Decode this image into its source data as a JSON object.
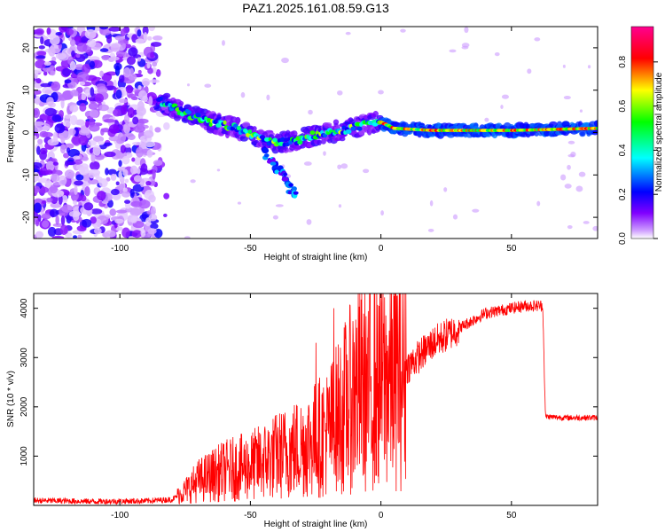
{
  "title": "PAZ1.2025.161.08.59.G13",
  "chart_data": [
    {
      "type": "heatmap",
      "xlabel": "Height of straight line (km)",
      "ylabel": "Frequency (Hz)",
      "xlim": [
        -133,
        83
      ],
      "ylim": [
        -25,
        25
      ],
      "xticks": [
        -100,
        -50,
        0,
        50
      ],
      "yticks": [
        -20,
        -10,
        0,
        10,
        20
      ],
      "colorbar": {
        "label": "Normalized spectral amplitude",
        "range": [
          0,
          0.96
        ],
        "ticks": [
          0.0,
          0.2,
          0.4,
          0.6,
          0.8
        ],
        "colormap": [
          "#ffffff",
          "#8000ff",
          "#0000ff",
          "#00ffff",
          "#00ff00",
          "#ffff00",
          "#ff0000",
          "#ff00a0"
        ]
      },
      "ridge": [
        {
          "x": -85,
          "y": 7.5
        },
        {
          "x": -75,
          "y": 4.5
        },
        {
          "x": -65,
          "y": 2.5
        },
        {
          "x": -55,
          "y": 1.0
        },
        {
          "x": -48,
          "y": -1.0
        },
        {
          "x": -40,
          "y": -2.5
        },
        {
          "x": -33,
          "y": -2.0
        },
        {
          "x": -25,
          "y": -0.5
        },
        {
          "x": -15,
          "y": 0.5
        },
        {
          "x": -5,
          "y": 2.0
        },
        {
          "x": 0,
          "y": 2.5
        },
        {
          "x": 5,
          "y": 1.0
        },
        {
          "x": 20,
          "y": 0.5
        },
        {
          "x": 50,
          "y": 0.5
        },
        {
          "x": 83,
          "y": 1.0
        }
      ],
      "branch": [
        {
          "x": -45,
          "y": -4
        },
        {
          "x": -40,
          "y": -8
        },
        {
          "x": -36,
          "y": -11.5
        },
        {
          "x": -33,
          "y": -15
        }
      ]
    },
    {
      "type": "line",
      "xlabel": "Height of straight line (km)",
      "ylabel": "SNR (10 * v/v)",
      "xlim": [
        -133,
        83
      ],
      "ylim": [
        0,
        4300
      ],
      "xticks": [
        -100,
        -50,
        0,
        50
      ],
      "yticks": [
        1000,
        2000,
        3000,
        4000
      ],
      "color": "#ff0000",
      "series": [
        {
          "x": [
            -133,
            -110,
            -90,
            -80,
            -75,
            -70,
            -60,
            -50,
            -40,
            -30,
            -20,
            -10,
            0,
            10,
            20,
            30,
            40,
            50,
            55,
            62,
            63,
            64,
            70,
            83
          ],
          "y": [
            100,
            80,
            90,
            120,
            300,
            500,
            700,
            800,
            1000,
            1200,
            1500,
            2300,
            2500,
            2800,
            3300,
            3600,
            3900,
            4000,
            4050,
            4050,
            1800,
            1800,
            1780,
            1780
          ]
        }
      ],
      "spikes": [
        {
          "x": -25,
          "y": 3300
        },
        {
          "x": -18,
          "y": 4000
        },
        {
          "x": -5,
          "y": 3400
        },
        {
          "x": -10,
          "y": 3100
        }
      ]
    }
  ]
}
